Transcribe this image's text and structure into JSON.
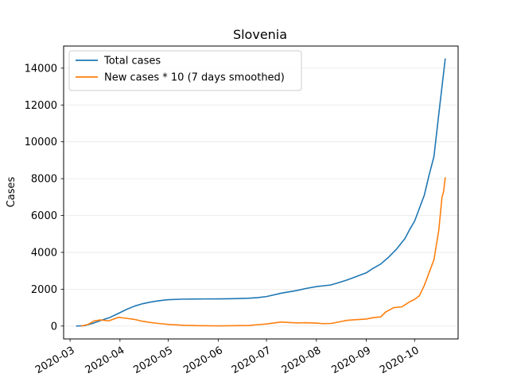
{
  "chart_data": {
    "type": "line",
    "title": "Slovenia",
    "xlabel": "",
    "ylabel": "Cases",
    "x_axis": {
      "type": "date",
      "range": [
        "2020-02-26",
        "2020-10-28"
      ],
      "ticks": [
        "2020-03",
        "2020-04",
        "2020-05",
        "2020-06",
        "2020-07",
        "2020-08",
        "2020-09",
        "2020-10"
      ]
    },
    "y_axis": {
      "range": [
        -700,
        15200
      ],
      "ticks": [
        0,
        2000,
        4000,
        6000,
        8000,
        10000,
        12000,
        14000
      ]
    },
    "grid": "horizontal",
    "legend_position": "top-left",
    "series": [
      {
        "name": "Total cases",
        "color": "#1f77b4",
        "points": [
          [
            "2020-03-05",
            0
          ],
          [
            "2020-03-10",
            20
          ],
          [
            "2020-03-15",
            140
          ],
          [
            "2020-03-20",
            300
          ],
          [
            "2020-03-25",
            440
          ],
          [
            "2020-03-30",
            640
          ],
          [
            "2020-04-05",
            900
          ],
          [
            "2020-04-10",
            1080
          ],
          [
            "2020-04-15",
            1210
          ],
          [
            "2020-04-20",
            1300
          ],
          [
            "2020-04-25",
            1370
          ],
          [
            "2020-05-01",
            1430
          ],
          [
            "2020-05-10",
            1460
          ],
          [
            "2020-05-20",
            1470
          ],
          [
            "2020-06-01",
            1475
          ],
          [
            "2020-06-10",
            1485
          ],
          [
            "2020-06-20",
            1510
          ],
          [
            "2020-06-25",
            1540
          ],
          [
            "2020-07-01",
            1600
          ],
          [
            "2020-07-10",
            1780
          ],
          [
            "2020-07-20",
            1930
          ],
          [
            "2020-07-25",
            2030
          ],
          [
            "2020-08-01",
            2140
          ],
          [
            "2020-08-10",
            2230
          ],
          [
            "2020-08-15",
            2360
          ],
          [
            "2020-08-20",
            2500
          ],
          [
            "2020-08-25",
            2660
          ],
          [
            "2020-09-01",
            2890
          ],
          [
            "2020-09-05",
            3120
          ],
          [
            "2020-09-10",
            3370
          ],
          [
            "2020-09-15",
            3750
          ],
          [
            "2020-09-20",
            4200
          ],
          [
            "2020-09-25",
            4750
          ],
          [
            "2020-09-28",
            5250
          ],
          [
            "2020-10-01",
            5700
          ],
          [
            "2020-10-04",
            6400
          ],
          [
            "2020-10-07",
            7100
          ],
          [
            "2020-10-10",
            8200
          ],
          [
            "2020-10-13",
            9200
          ],
          [
            "2020-10-16",
            11500
          ],
          [
            "2020-10-18",
            13000
          ],
          [
            "2020-10-20",
            14500
          ]
        ]
      },
      {
        "name": "New cases * 10 (7 days smoothed)",
        "color": "#ff7f0e",
        "points": [
          [
            "2020-03-08",
            0
          ],
          [
            "2020-03-12",
            80
          ],
          [
            "2020-03-16",
            280
          ],
          [
            "2020-03-20",
            330
          ],
          [
            "2020-03-25",
            280
          ],
          [
            "2020-03-31",
            470
          ],
          [
            "2020-04-05",
            420
          ],
          [
            "2020-04-10",
            360
          ],
          [
            "2020-04-15",
            260
          ],
          [
            "2020-04-20",
            190
          ],
          [
            "2020-04-25",
            140
          ],
          [
            "2020-05-01",
            90
          ],
          [
            "2020-05-10",
            40
          ],
          [
            "2020-05-20",
            20
          ],
          [
            "2020-06-01",
            10
          ],
          [
            "2020-06-10",
            20
          ],
          [
            "2020-06-20",
            30
          ],
          [
            "2020-06-25",
            70
          ],
          [
            "2020-07-01",
            110
          ],
          [
            "2020-07-05",
            160
          ],
          [
            "2020-07-10",
            220
          ],
          [
            "2020-07-15",
            190
          ],
          [
            "2020-07-20",
            170
          ],
          [
            "2020-07-25",
            180
          ],
          [
            "2020-08-01",
            160
          ],
          [
            "2020-08-05",
            130
          ],
          [
            "2020-08-10",
            140
          ],
          [
            "2020-08-15",
            220
          ],
          [
            "2020-08-20",
            310
          ],
          [
            "2020-08-25",
            340
          ],
          [
            "2020-09-01",
            380
          ],
          [
            "2020-09-05",
            450
          ],
          [
            "2020-09-10",
            500
          ],
          [
            "2020-09-13",
            760
          ],
          [
            "2020-09-18",
            1000
          ],
          [
            "2020-09-23",
            1040
          ],
          [
            "2020-09-28",
            1320
          ],
          [
            "2020-10-01",
            1450
          ],
          [
            "2020-10-04",
            1650
          ],
          [
            "2020-10-07",
            2200
          ],
          [
            "2020-10-10",
            2900
          ],
          [
            "2020-10-13",
            3600
          ],
          [
            "2020-10-16",
            5200
          ],
          [
            "2020-10-18",
            7000
          ],
          [
            "2020-10-19",
            7300
          ],
          [
            "2020-10-20",
            8050
          ]
        ]
      }
    ]
  }
}
